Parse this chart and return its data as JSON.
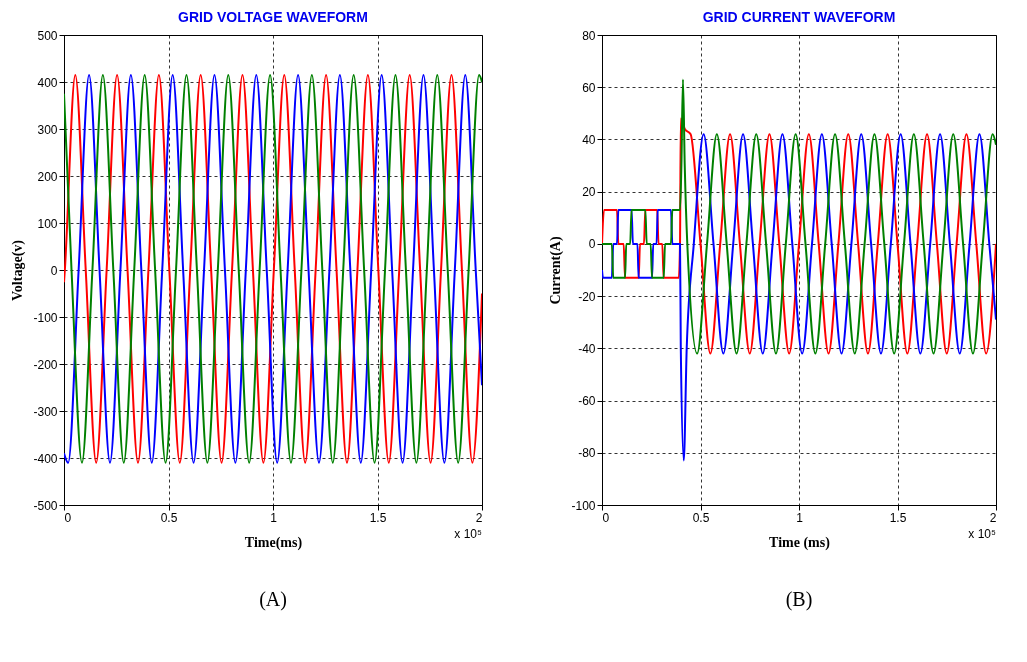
{
  "chart_data": [
    {
      "type": "line",
      "title": "GRID VOLTAGE WAVEFORM",
      "xlabel": "Time(ms)",
      "ylabel": "Voltage(v)",
      "annotations": [
        "x 10⁵",
        "(A)"
      ],
      "xlim": [
        0,
        2
      ],
      "xticks": [
        0,
        0.5,
        1,
        1.5,
        2
      ],
      "ylim": [
        -500,
        500
      ],
      "yticks": [
        -500,
        -400,
        -300,
        -200,
        -100,
        0,
        100,
        200,
        300,
        400,
        500
      ],
      "grid": true,
      "line_style": "solid",
      "series": [
        {
          "color": "#ff0000",
          "x": [
            0,
            0.004,
            0.054,
            0.104,
            0.154,
            0.204,
            0.254,
            0.304,
            0.354,
            0.404,
            0.454,
            0.504,
            0.554,
            0.604,
            0.654,
            0.704,
            0.754,
            0.804,
            0.854,
            0.904,
            0.954,
            1.004,
            1.054,
            1.104,
            1.154,
            1.204,
            1.254,
            1.304,
            1.354,
            1.404,
            1.454,
            1.504,
            1.554,
            1.604,
            1.654,
            1.704,
            1.754,
            1.804,
            1.854,
            1.904,
            1.954,
            2
          ],
          "values": [
            -26,
            0,
            415,
            0,
            -410,
            0,
            415,
            0,
            -410,
            0,
            415,
            0,
            -410,
            0,
            415,
            0,
            -410,
            0,
            415,
            0,
            -410,
            0,
            415,
            0,
            -410,
            0,
            415,
            0,
            -410,
            0,
            415,
            0,
            -410,
            0,
            415,
            0,
            -410,
            0,
            415,
            0,
            -410,
            -50
          ]
        },
        {
          "color": "#0000ff",
          "x": [
            0,
            0.02,
            0.07,
            0.12,
            0.17,
            0.22,
            0.27,
            0.32,
            0.37,
            0.42,
            0.47,
            0.52,
            0.57,
            0.62,
            0.67,
            0.72,
            0.77,
            0.82,
            0.87,
            0.92,
            0.97,
            1.02,
            1.07,
            1.12,
            1.17,
            1.22,
            1.27,
            1.32,
            1.37,
            1.42,
            1.47,
            1.52,
            1.57,
            1.62,
            1.67,
            1.72,
            1.77,
            1.82,
            1.87,
            1.92,
            1.97,
            2
          ],
          "values": [
            -390,
            -410,
            0,
            415,
            0,
            -410,
            0,
            415,
            0,
            -410,
            0,
            415,
            0,
            -410,
            0,
            415,
            0,
            -410,
            0,
            415,
            0,
            -410,
            0,
            415,
            0,
            -410,
            0,
            415,
            0,
            -410,
            0,
            415,
            0,
            -410,
            0,
            415,
            0,
            -410,
            0,
            415,
            0,
            -245
          ]
        },
        {
          "color": "#008000",
          "x": [
            0,
            0.036,
            0.086,
            0.136,
            0.186,
            0.236,
            0.286,
            0.336,
            0.386,
            0.436,
            0.486,
            0.536,
            0.586,
            0.636,
            0.686,
            0.736,
            0.786,
            0.836,
            0.886,
            0.936,
            0.986,
            1.036,
            1.086,
            1.136,
            1.186,
            1.236,
            1.286,
            1.336,
            1.386,
            1.436,
            1.486,
            1.536,
            1.586,
            1.636,
            1.686,
            1.736,
            1.786,
            1.836,
            1.886,
            1.936,
            1.986,
            2
          ],
          "values": [
            375,
            0,
            -410,
            0,
            415,
            0,
            -410,
            0,
            415,
            0,
            -410,
            0,
            415,
            0,
            -410,
            0,
            415,
            0,
            -410,
            0,
            415,
            0,
            -410,
            0,
            415,
            0,
            -410,
            0,
            415,
            0,
            -410,
            0,
            415,
            0,
            -410,
            0,
            415,
            0,
            -410,
            0,
            415,
            400
          ]
        }
      ]
    },
    {
      "type": "line",
      "title": "GRID CURRENT WAVEFORM",
      "xlabel": "Time (ms)",
      "ylabel": "Current(A)",
      "annotations": [
        "x 10⁵",
        "(B)"
      ],
      "xlim": [
        0,
        2
      ],
      "xticks": [
        0,
        0.5,
        1,
        1.5,
        2
      ],
      "ylim": [
        -100,
        80
      ],
      "yticks": [
        -100,
        -80,
        -60,
        -40,
        -20,
        0,
        20,
        40,
        60,
        80
      ],
      "grid": true,
      "line_style": "solid",
      "series": [
        {
          "color": "#ff0000",
          "x": [
            0,
            0.01,
            0.076,
            0.083,
            0.11,
            0.117,
            0.186,
            0.193,
            0.213,
            0.22,
            0.28,
            0.287,
            0.306,
            0.313,
            0.39,
            0.396,
            0.4,
            0.42,
            0.45,
            0.5,
            0.55,
            0.6,
            0.65,
            0.7,
            0.75,
            0.8,
            0.85,
            0.9,
            0.95,
            1.0,
            1.05,
            1.1,
            1.15,
            1.2,
            1.25,
            1.3,
            1.35,
            1.4,
            1.45,
            1.5,
            1.55,
            1.6,
            1.65,
            1.7,
            1.75,
            1.8,
            1.85,
            1.9,
            1.95,
            2
          ],
          "values": [
            0,
            13,
            13,
            0,
            0,
            -13,
            -13,
            0,
            0,
            13,
            13,
            0,
            0,
            -13,
            -13,
            0,
            48,
            44,
            42,
            0,
            -42,
            0,
            42,
            0,
            -42,
            0,
            42,
            0,
            -42,
            0,
            42,
            0,
            -42,
            0,
            42,
            0,
            -42,
            0,
            42,
            0,
            -42,
            0,
            42,
            0,
            -42,
            0,
            42,
            0,
            -42,
            0
          ]
        },
        {
          "color": "#0000ff",
          "x": [
            0,
            0.005,
            0.05,
            0.057,
            0.076,
            0.083,
            0.15,
            0.157,
            0.18,
            0.186,
            0.254,
            0.26,
            0.277,
            0.283,
            0.35,
            0.357,
            0.396,
            0.4,
            0.415,
            0.43,
            0.466,
            0.516,
            0.566,
            0.616,
            0.666,
            0.716,
            0.766,
            0.816,
            0.866,
            0.916,
            0.966,
            1.016,
            1.066,
            1.116,
            1.166,
            1.216,
            1.266,
            1.316,
            1.366,
            1.416,
            1.466,
            1.516,
            1.566,
            1.616,
            1.666,
            1.716,
            1.766,
            1.816,
            1.866,
            1.916,
            1.966,
            2
          ],
          "values": [
            -10,
            -13,
            -13,
            0,
            0,
            13,
            13,
            0,
            0,
            -13,
            -13,
            0,
            0,
            13,
            13,
            0,
            0,
            -40,
            -83,
            -40,
            0,
            42,
            0,
            -42,
            0,
            42,
            0,
            -42,
            0,
            42,
            0,
            -42,
            0,
            42,
            0,
            -42,
            0,
            42,
            0,
            -42,
            0,
            42,
            0,
            -42,
            0,
            42,
            0,
            -42,
            0,
            42,
            0,
            -29
          ]
        },
        {
          "color": "#008000",
          "x": [
            0,
            0.05,
            0.057,
            0.117,
            0.123,
            0.143,
            0.15,
            0.22,
            0.227,
            0.247,
            0.254,
            0.313,
            0.32,
            0.35,
            0.357,
            0.396,
            0.403,
            0.411,
            0.42,
            0.433,
            0.483,
            0.533,
            0.583,
            0.633,
            0.683,
            0.733,
            0.783,
            0.833,
            0.883,
            0.933,
            0.983,
            1.033,
            1.083,
            1.133,
            1.183,
            1.233,
            1.283,
            1.333,
            1.383,
            1.433,
            1.483,
            1.533,
            1.583,
            1.633,
            1.683,
            1.733,
            1.783,
            1.833,
            1.883,
            1.933,
            1.983,
            2
          ],
          "values": [
            0,
            0,
            -13,
            -13,
            0,
            0,
            13,
            13,
            0,
            0,
            -13,
            -13,
            0,
            0,
            13,
            13,
            30,
            63,
            30,
            0,
            -42,
            0,
            42,
            0,
            -42,
            0,
            42,
            0,
            -42,
            0,
            42,
            0,
            -42,
            0,
            42,
            0,
            -42,
            0,
            42,
            0,
            -42,
            0,
            42,
            0,
            -42,
            0,
            42,
            0,
            -42,
            0,
            42,
            38
          ]
        }
      ]
    }
  ]
}
